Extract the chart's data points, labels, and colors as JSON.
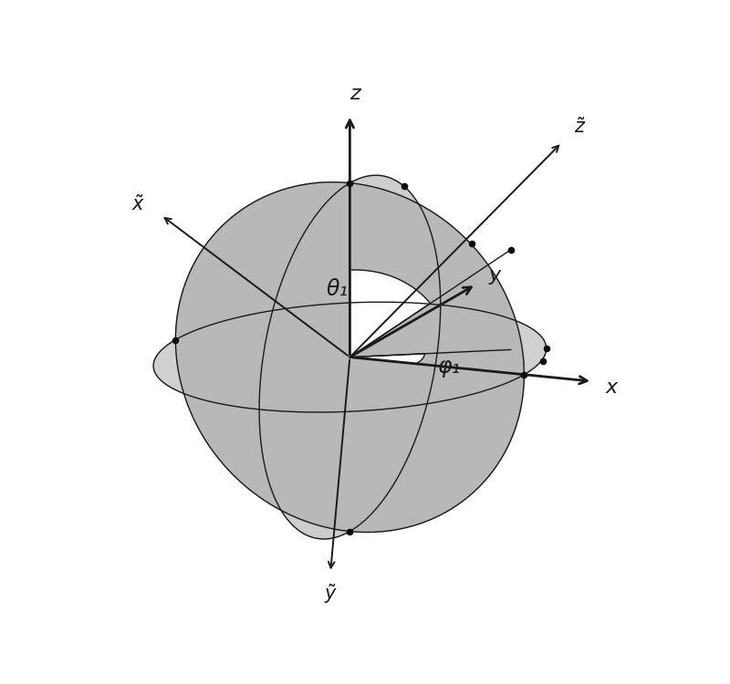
{
  "bg_color": "#ffffff",
  "line_color": "#1a1a1a",
  "dot_color": "#0a0a0a",
  "disk_color_dark": "#b8b8b8",
  "disk_color_light": "#d0d0d0",
  "sector_white": "#ffffff",
  "figsize": [
    8.0,
    7.5
  ],
  "dpi": 100,
  "theta1_label": "θ₁",
  "phi1_label": "φ₁",
  "theta1_deg": 55,
  "phi1_deg": 28,
  "R": 1.15
}
